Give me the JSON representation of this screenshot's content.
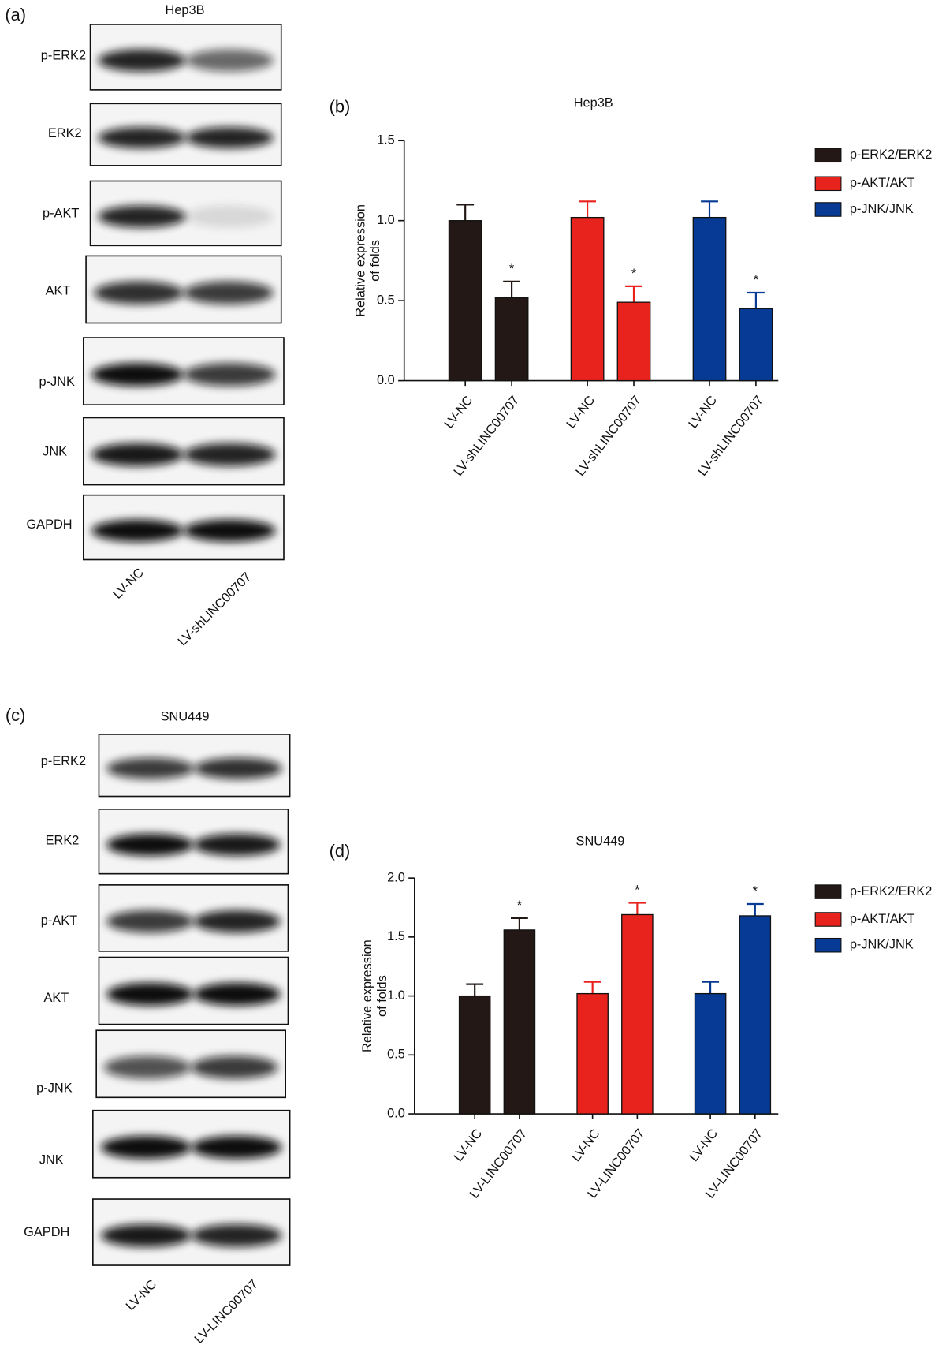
{
  "chart_data": [
    {
      "type": "bar",
      "label": "(b)",
      "title": "Hep3B",
      "ylabel": [
        "Relative expression",
        "of folds"
      ],
      "categories": [
        "LV-NC",
        "LV-shLINC00707"
      ],
      "series": [
        {
          "name": "p-ERK2/ERK2",
          "color": "#231815",
          "values": [
            1.0,
            0.52
          ],
          "errors": [
            0.1,
            0.1
          ],
          "significance": [
            null,
            "*"
          ]
        },
        {
          "name": "p-AKT/AKT",
          "color": "#e8221c",
          "values": [
            1.02,
            0.49
          ],
          "errors": [
            0.1,
            0.1
          ],
          "significance": [
            null,
            "*"
          ]
        },
        {
          "name": "p-JNK/JNK",
          "color": "#063a94",
          "values": [
            1.02,
            0.45
          ],
          "errors": [
            0.1,
            0.1
          ],
          "significance": [
            null,
            "*"
          ]
        }
      ],
      "ylim": [
        0,
        1.5
      ],
      "yticks": [
        {
          "value": 0,
          "label": "0.0"
        },
        {
          "value": 0.5,
          "label": "0.5"
        },
        {
          "value": 1,
          "label": "1.0"
        },
        {
          "value": 1.5,
          "label": "1.5"
        }
      ],
      "legend": "right"
    },
    {
      "type": "bar",
      "label": "(d)",
      "title": "SNU449",
      "ylabel": [
        "Relative expression",
        "of folds"
      ],
      "categories": [
        "LV-NC",
        "LV-LINC00707"
      ],
      "series": [
        {
          "name": "p-ERK2/ERK2",
          "color": "#231815",
          "values": [
            1.0,
            1.56
          ],
          "errors": [
            0.1,
            0.1
          ],
          "significance": [
            null,
            "*"
          ]
        },
        {
          "name": "p-AKT/AKT",
          "color": "#e8221c",
          "values": [
            1.02,
            1.69
          ],
          "errors": [
            0.1,
            0.1
          ],
          "significance": [
            null,
            "*"
          ]
        },
        {
          "name": "p-JNK/JNK",
          "color": "#063a94",
          "values": [
            1.02,
            1.68
          ],
          "errors": [
            0.1,
            0.1
          ],
          "significance": [
            null,
            "*"
          ]
        }
      ],
      "ylim": [
        0,
        2
      ],
      "yticks": [
        {
          "value": 0,
          "label": "0.0"
        },
        {
          "value": 0.5,
          "label": "0.5"
        },
        {
          "value": 1,
          "label": "1.0"
        },
        {
          "value": 1.5,
          "label": "1.5"
        },
        {
          "value": 2,
          "label": "2.0"
        }
      ],
      "legend": "right"
    }
  ],
  "blots": [
    {
      "label": "(a)",
      "title": "Hep3B",
      "rows": [
        "p-ERK2",
        "ERK2",
        "p-AKT",
        "AKT",
        "p-JNK",
        "JNK",
        "GAPDH"
      ],
      "lanes": [
        "LV-NC",
        "LV-shLINC00707"
      ]
    },
    {
      "label": "(c)",
      "title": "SNU449",
      "rows": [
        "p-ERK2",
        "ERK2",
        "p-AKT",
        "AKT",
        "p-JNK",
        "JNK",
        "GAPDH"
      ],
      "lanes": [
        "LV-NC",
        "LV-LINC00707"
      ]
    }
  ]
}
